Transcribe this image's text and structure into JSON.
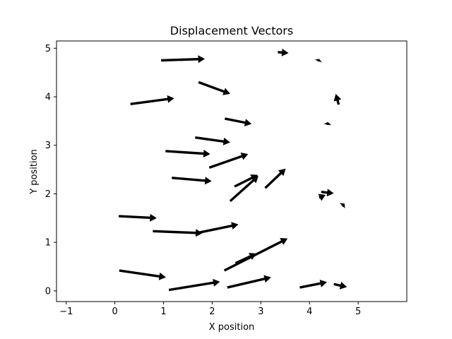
{
  "chart_data": {
    "type": "quiver",
    "title": "Displacement Vectors",
    "xlabel": "X position",
    "ylabel": "Y position",
    "xlim": [
      -1.2,
      6.0
    ],
    "ylim": [
      -0.22,
      5.15
    ],
    "xticks": [
      -1,
      0,
      1,
      2,
      3,
      4,
      5
    ],
    "yticks": [
      0,
      1,
      2,
      3,
      4,
      5
    ],
    "grid": false,
    "color": "#000000",
    "vectors": [
      {
        "x": 0.95,
        "y": 4.75,
        "dx": 0.9,
        "dy": 0.03
      },
      {
        "x": 1.72,
        "y": 4.3,
        "dx": 0.65,
        "dy": -0.24
      },
      {
        "x": 3.35,
        "y": 4.92,
        "dx": 0.22,
        "dy": -0.02
      },
      {
        "x": 4.18,
        "y": 4.73,
        "dx": 0.02,
        "dy": 0.05
      },
      {
        "x": 0.32,
        "y": 3.85,
        "dx": 0.9,
        "dy": 0.12
      },
      {
        "x": 4.6,
        "y": 3.84,
        "dx": -0.06,
        "dy": 0.22
      },
      {
        "x": 2.26,
        "y": 3.55,
        "dx": 0.55,
        "dy": -0.11
      },
      {
        "x": 4.37,
        "y": 3.42,
        "dx": 0.01,
        "dy": 0.06
      },
      {
        "x": 1.65,
        "y": 3.16,
        "dx": 0.72,
        "dy": -0.1
      },
      {
        "x": 1.04,
        "y": 2.88,
        "dx": 0.92,
        "dy": -0.06
      },
      {
        "x": 1.94,
        "y": 2.54,
        "dx": 0.8,
        "dy": 0.28
      },
      {
        "x": 1.17,
        "y": 2.33,
        "dx": 0.82,
        "dy": -0.07
      },
      {
        "x": 2.46,
        "y": 2.15,
        "dx": 0.48,
        "dy": 0.24
      },
      {
        "x": 2.37,
        "y": 1.85,
        "dx": 0.58,
        "dy": 0.52
      },
      {
        "x": 3.09,
        "y": 2.12,
        "dx": 0.42,
        "dy": 0.4
      },
      {
        "x": 4.24,
        "y": 2.04,
        "dx": 0.26,
        "dy": -0.03
      },
      {
        "x": 4.2,
        "y": 1.92,
        "dx": 0.13,
        "dy": 0.06
      },
      {
        "x": 4.67,
        "y": 1.75,
        "dx": 0.05,
        "dy": 0.05
      },
      {
        "x": 0.08,
        "y": 1.54,
        "dx": 0.78,
        "dy": -0.04
      },
      {
        "x": 0.78,
        "y": 1.23,
        "dx": 1.02,
        "dy": -0.04
      },
      {
        "x": 1.72,
        "y": 1.2,
        "dx": 0.82,
        "dy": 0.17
      },
      {
        "x": 2.25,
        "y": 0.42,
        "dx": 1.3,
        "dy": 0.66
      },
      {
        "x": 2.48,
        "y": 0.57,
        "dx": 0.43,
        "dy": 0.2
      },
      {
        "x": 0.09,
        "y": 0.42,
        "dx": 0.96,
        "dy": -0.14
      },
      {
        "x": 1.11,
        "y": 0.02,
        "dx": 1.05,
        "dy": 0.17
      },
      {
        "x": 2.31,
        "y": 0.07,
        "dx": 0.9,
        "dy": 0.21
      },
      {
        "x": 3.8,
        "y": 0.07,
        "dx": 0.56,
        "dy": 0.11
      },
      {
        "x": 4.5,
        "y": 0.14,
        "dx": 0.27,
        "dy": -0.06
      }
    ]
  }
}
